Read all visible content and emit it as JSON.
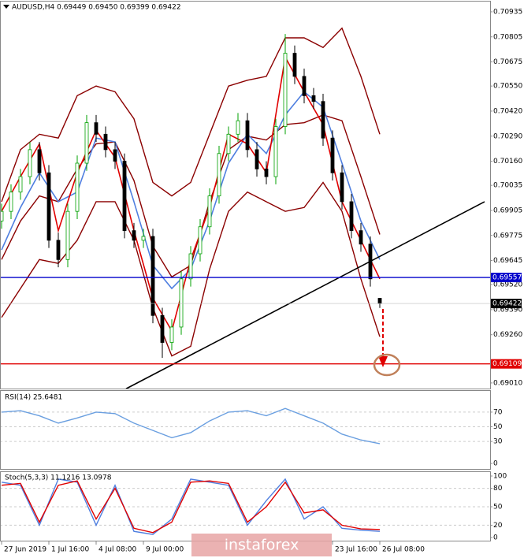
{
  "chart_data": [
    {
      "type": "candlestick",
      "title": "AUDUSD,H4  0.69449 0.69450 0.69399 0.69422",
      "xlim": [
        0,
        155
      ],
      "ylim": [
        0.68981,
        0.70988
      ],
      "yticks": [
        0.70935,
        0.70805,
        0.70675,
        {
          "value": 0.7055,
          "label": "0.70550"
        },
        {
          "value": 0.7042,
          "label": "0.70420"
        },
        {
          "value": 0.7029,
          "label": "0.70290"
        },
        {
          "value": 0.7016,
          "label": "0.70160"
        },
        0.70035,
        0.69905,
        0.69775,
        0.69645,
        {
          "value": 0.6952,
          "label": "0.69520"
        },
        {
          "value": 0.6939,
          "label": "0.69390"
        },
        {
          "value": 0.6926,
          "label": "0.69260"
        },
        {
          "value": 0.6901,
          "label": "0.69010"
        }
      ],
      "up_color": "#00a000",
      "down_color": "#000000",
      "x": [
        0,
        3,
        6,
        9,
        12,
        15,
        18,
        21,
        24,
        27,
        30,
        33,
        36,
        39,
        42,
        45,
        48,
        51,
        54,
        57,
        60,
        63,
        66,
        69,
        72,
        75,
        78,
        81,
        84,
        87,
        90,
        93,
        96,
        99,
        102,
        105,
        108,
        111,
        114,
        117,
        120
      ],
      "open": [
        0.6985,
        0.699,
        0.7,
        0.7008,
        0.7022,
        0.701,
        0.6975,
        0.6965,
        0.699,
        0.7015,
        0.7036,
        0.703,
        0.7022,
        0.7016,
        0.698,
        0.6975,
        0.6977,
        0.6936,
        0.6922,
        0.693,
        0.6955,
        0.6968,
        0.6982,
        0.6998,
        0.702,
        0.703,
        0.7037,
        0.7022,
        0.7012,
        0.7008,
        0.7034,
        0.7072,
        0.706,
        0.705,
        0.7047,
        0.7028,
        0.701,
        0.6995,
        0.698,
        0.6973,
        0.69449
      ],
      "high": [
        0.6994,
        0.7004,
        0.7012,
        0.7026,
        0.7026,
        0.7014,
        0.6979,
        0.6994,
        0.7019,
        0.704,
        0.704,
        0.7034,
        0.7026,
        0.702,
        0.6984,
        0.6981,
        0.6981,
        0.694,
        0.6934,
        0.6959,
        0.6972,
        0.6986,
        0.7002,
        0.7024,
        0.7034,
        0.7041,
        0.7041,
        0.7026,
        0.7016,
        0.7038,
        0.7082,
        0.7076,
        0.7064,
        0.7054,
        0.7051,
        0.7032,
        0.7014,
        0.6999,
        0.6984,
        0.6977,
        0.6945
      ],
      "low": [
        0.6981,
        0.6986,
        0.6996,
        0.7004,
        0.7006,
        0.6971,
        0.6961,
        0.6961,
        0.6986,
        0.7011,
        0.7026,
        0.7018,
        0.7012,
        0.6976,
        0.6971,
        0.6971,
        0.6932,
        0.6914,
        0.6918,
        0.6926,
        0.6951,
        0.6964,
        0.6978,
        0.6994,
        0.7016,
        0.7026,
        0.7018,
        0.7008,
        0.7004,
        0.7004,
        0.703,
        0.7056,
        0.7046,
        0.7043,
        0.7024,
        0.7006,
        0.6991,
        0.6976,
        0.6969,
        0.6951,
        0.69399
      ],
      "close": [
        0.699,
        0.7,
        0.7008,
        0.7022,
        0.701,
        0.6975,
        0.6965,
        0.699,
        0.7015,
        0.7036,
        0.703,
        0.7022,
        0.7016,
        0.698,
        0.6975,
        0.6977,
        0.6936,
        0.6922,
        0.693,
        0.6955,
        0.6968,
        0.6982,
        0.6998,
        0.702,
        0.703,
        0.7037,
        0.7022,
        0.7012,
        0.7008,
        0.7034,
        0.7072,
        0.706,
        0.705,
        0.7047,
        0.7028,
        0.701,
        0.6995,
        0.698,
        0.6973,
        0.6955,
        0.69422
      ],
      "series": [
        {
          "color": "#8b0000",
          "x": [
            0,
            6,
            12,
            18,
            24,
            30,
            36,
            42,
            48,
            54,
            60,
            66,
            72,
            78,
            84,
            90,
            96,
            102,
            108,
            114,
            120
          ],
          "values": [
            0.6995,
            0.7022,
            0.703,
            0.7028,
            0.705,
            0.7055,
            0.7052,
            0.7038,
            0.7005,
            0.6998,
            0.7005,
            0.703,
            0.7055,
            0.7058,
            0.706,
            0.708,
            0.708,
            0.7075,
            0.7085,
            0.706,
            0.703
          ]
        },
        {
          "color": "#8b0000",
          "x": [
            0,
            6,
            12,
            18,
            24,
            30,
            36,
            42,
            48,
            54,
            60,
            66,
            72,
            78,
            84,
            90,
            96,
            102,
            108,
            114,
            120
          ],
          "values": [
            0.6935,
            0.695,
            0.6965,
            0.6963,
            0.6975,
            0.6995,
            0.6995,
            0.6975,
            0.694,
            0.6915,
            0.692,
            0.696,
            0.699,
            0.7,
            0.6995,
            0.699,
            0.6992,
            0.7005,
            0.699,
            0.6955,
            0.6925
          ]
        },
        {
          "color": "#8b0000",
          "x": [
            0,
            6,
            12,
            18,
            24,
            30,
            36,
            42,
            48,
            54,
            60,
            66,
            72,
            78,
            84,
            90,
            96,
            102,
            108,
            114,
            120
          ],
          "values": [
            0.6965,
            0.6985,
            0.6998,
            0.6995,
            0.7012,
            0.7025,
            0.7026,
            0.7006,
            0.6972,
            0.6956,
            0.6962,
            0.6995,
            0.7022,
            0.7029,
            0.7027,
            0.7035,
            0.7036,
            0.704,
            0.7037,
            0.7008,
            0.6978
          ]
        },
        {
          "color": "#4f7fe0",
          "x": [
            0,
            6,
            12,
            18,
            24,
            30,
            36,
            42,
            48,
            54,
            60,
            66,
            72,
            78,
            84,
            90,
            96,
            102,
            108,
            114,
            120
          ],
          "values": [
            0.697,
            0.6992,
            0.701,
            0.6995,
            0.7,
            0.7028,
            0.7026,
            0.6995,
            0.6962,
            0.695,
            0.696,
            0.6985,
            0.7015,
            0.703,
            0.702,
            0.704,
            0.7052,
            0.7044,
            0.7015,
            0.6985,
            0.6965
          ]
        },
        {
          "color": "#e00000",
          "x": [
            0,
            6,
            12,
            18,
            24,
            30,
            36,
            42,
            48,
            54,
            60,
            66,
            72,
            78,
            84,
            90,
            96,
            102,
            108,
            114,
            120
          ],
          "values": [
            0.699,
            0.7008,
            0.7025,
            0.698,
            0.701,
            0.7032,
            0.7018,
            0.698,
            0.6945,
            0.6928,
            0.6965,
            0.6992,
            0.703,
            0.7025,
            0.701,
            0.707,
            0.7052,
            0.7035,
            0.6995,
            0.6975,
            0.6955
          ]
        }
      ],
      "levels": [
        {
          "value": 0.69557,
          "color": "#0000cc"
        },
        {
          "value": 0.69109,
          "color": "#e00000"
        }
      ],
      "trendline": {
        "x": [
          39.5,
          153.25
        ],
        "values": [
          0.6898,
          0.6995
        ],
        "color": "#000000"
      }
    },
    {
      "type": "line",
      "title": "RSI(14) 25.6481",
      "ylim": [
        0,
        100
      ],
      "yticks": [
        70,
        50,
        30,
        0
      ],
      "series": [
        {
          "color": "#6a9fe0",
          "x": [
            0,
            6,
            12,
            18,
            24,
            30,
            36,
            42,
            48,
            54,
            60,
            66,
            72,
            78,
            84,
            90,
            96,
            102,
            108,
            114,
            120
          ],
          "values": [
            70,
            72,
            65,
            55,
            62,
            70,
            68,
            55,
            45,
            35,
            42,
            58,
            70,
            72,
            65,
            75,
            65,
            55,
            40,
            32,
            27
          ]
        }
      ]
    },
    {
      "type": "line",
      "title": "Stoch(5,3,3) 11.1216 13.0978",
      "ylim": [
        0,
        100
      ],
      "yticks": [
        100,
        80,
        50,
        20,
        0
      ],
      "series": [
        {
          "color": "#4f7fe0",
          "x": [
            0,
            6,
            12,
            18,
            24,
            30,
            36,
            42,
            48,
            54,
            60,
            66,
            72,
            78,
            84,
            90,
            96,
            102,
            108,
            114,
            120
          ],
          "values": [
            90,
            85,
            20,
            95,
            90,
            20,
            85,
            10,
            5,
            30,
            95,
            90,
            85,
            20,
            60,
            95,
            30,
            50,
            15,
            12,
            10
          ]
        },
        {
          "color": "#e00000",
          "x": [
            0,
            6,
            12,
            18,
            24,
            30,
            36,
            42,
            48,
            54,
            60,
            66,
            72,
            78,
            84,
            90,
            96,
            102,
            108,
            114,
            120
          ],
          "values": [
            85,
            88,
            25,
            85,
            92,
            30,
            80,
            15,
            8,
            25,
            90,
            92,
            88,
            25,
            50,
            90,
            40,
            45,
            20,
            14,
            13
          ]
        }
      ],
      "xticks": [
        {
          "value": 0,
          "label": "27 Jun 2019"
        },
        {
          "value": 15,
          "label": "1 Jul 16:00"
        },
        {
          "value": 30,
          "label": "4 Jul 08:00"
        },
        {
          "value": 45,
          "label": "9 Jul 00:00"
        },
        {
          "value": 105,
          "label": "23 Jul 16:00"
        },
        {
          "value": 120,
          "label": "26 Jul 08:00"
        }
      ],
      "watermark": "instaforex"
    }
  ]
}
